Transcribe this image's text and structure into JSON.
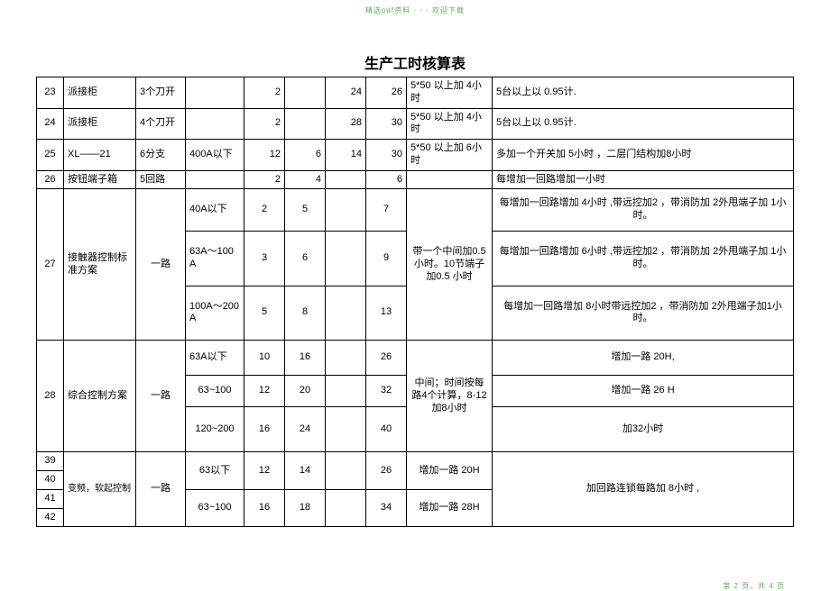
{
  "header_note": "精选pdf资料 - - - 欢迎下载",
  "title": "生产工时核算表",
  "footer": "第 2 页，共 4 页",
  "rows": {
    "r23": {
      "idx": "23",
      "name": "派接柜",
      "spec1": "3个刀开",
      "spec2": "",
      "n1": "2",
      "n2": "",
      "n3": "24",
      "n4": "26",
      "cond": "5*50 以上加 4小时",
      "note": "5台以上以 0.95计."
    },
    "r24": {
      "idx": "24",
      "name": "派接柜",
      "spec1": "4个刀开",
      "spec2": "",
      "n1": "2",
      "n2": "",
      "n3": "28",
      "n4": "30",
      "cond": "5*50 以上加 4小时",
      "note": "5台以上以 0.95计."
    },
    "r25": {
      "idx": "25",
      "name": "XL——21",
      "spec1": "6分支",
      "spec2": "400A以下",
      "n1": "12",
      "n2": "6",
      "n3": "14",
      "n4": "30",
      "cond": "5*50 以上加 6小时",
      "note": "多加一个开关加 5小时 ，二层门结构加8小时"
    },
    "r26": {
      "idx": "26",
      "name": "按钮端子箱",
      "spec1": "5回路",
      "spec2": "",
      "n1": "2",
      "n2": "4",
      "n3": "",
      "n4": "6",
      "cond": "",
      "note": "每增加一回路增加一小时"
    },
    "r27": {
      "idx": "27",
      "name": "接触器控制标准方案",
      "spec1": "一路",
      "cond": "带一个中间加0.5 小时。10节端子加0.5 小时",
      "sub": [
        {
          "spec2": "40A以下",
          "n1": "2",
          "n2": "5",
          "n4": "7",
          "note": "每增加一回路增加 4小时 ,带远控加2 ，带消防加 2外甩端子加 1小时。"
        },
        {
          "spec2": "63A～100A",
          "n1": "3",
          "n2": "6",
          "n4": "9",
          "note": "每增加一回路增加 6小时 ,带远控加2 ，带消防加 2外甩端子加 1小时。"
        },
        {
          "spec2": "100A～200A",
          "n1": "5",
          "n2": "8",
          "n4": "13",
          "note": "每增加一回路增加 8小时带远控加2 ，带消防加 2外甩端子加1小时。"
        }
      ]
    },
    "r28": {
      "idx": "28",
      "name": "综合控制方案",
      "spec1": "一路",
      "cond": "中间；时间按每路4个计算，8-12加8小时",
      "sub": [
        {
          "spec2": "63A以下",
          "n1": "10",
          "n2": "16",
          "n4": "26",
          "note": "增加一路 20H,"
        },
        {
          "spec2": "63~100",
          "n1": "12",
          "n2": "20",
          "n4": "32",
          "note": "增加一路 26 H"
        },
        {
          "spec2": "120~200",
          "n1": "16",
          "n2": "24",
          "n4": "40",
          "note": "加32小时"
        }
      ]
    },
    "r3942": {
      "idx39": "39",
      "idx40": "40",
      "idx41": "41",
      "idx42": "42",
      "name": "变频，软起控制",
      "spec1": "一路",
      "note_merge": "加回路连锁每路加 8小时 ,",
      "sub": [
        {
          "spec2": "63以下",
          "n1": "12",
          "n2": "14",
          "n4": "26",
          "cond": "增加一路 20H"
        },
        {
          "spec2": "63~100",
          "n1": "16",
          "n2": "18",
          "n4": "34",
          "cond": "增加一路 28H"
        }
      ]
    }
  }
}
